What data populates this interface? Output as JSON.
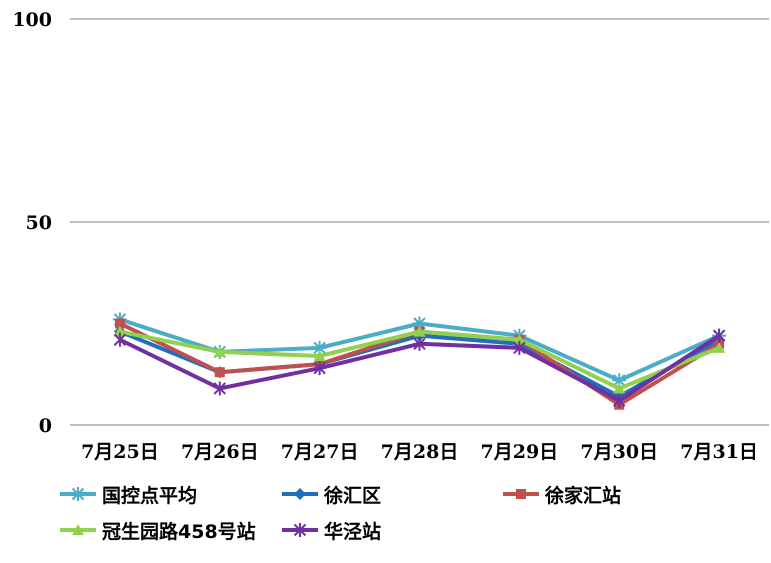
{
  "chart_data": {
    "type": "line",
    "title": "",
    "xlabel": "",
    "ylabel": "",
    "ylim": [
      0,
      100
    ],
    "y_ticks": [
      "0",
      "50",
      "100"
    ],
    "grid": true,
    "legend_position": "bottom",
    "categories": [
      "7月25日",
      "7月26日",
      "7月27日",
      "7月28日",
      "7月29日",
      "7月30日",
      "7月31日"
    ],
    "series": [
      {
        "name": "国控点平均",
        "color": "#4bacc6",
        "marker": "asterisk",
        "values": [
          26,
          18,
          19,
          25,
          22,
          11,
          22
        ]
      },
      {
        "name": "徐汇区",
        "color": "#1f6fbf",
        "marker": "diamond",
        "values": [
          23,
          13,
          15,
          22,
          20,
          7,
          21
        ]
      },
      {
        "name": "徐家汇站",
        "color": "#c0504d",
        "marker": "square",
        "values": [
          25,
          13,
          15,
          23,
          21,
          5,
          20
        ]
      },
      {
        "name": "冠生园路458号站",
        "color": "#92d050",
        "marker": "triangle",
        "values": [
          23,
          18,
          17,
          23,
          21,
          9,
          19
        ]
      },
      {
        "name": "华泾站",
        "color": "#7030a0",
        "marker": "star",
        "values": [
          21,
          9,
          14,
          20,
          19,
          6,
          22
        ]
      }
    ]
  }
}
